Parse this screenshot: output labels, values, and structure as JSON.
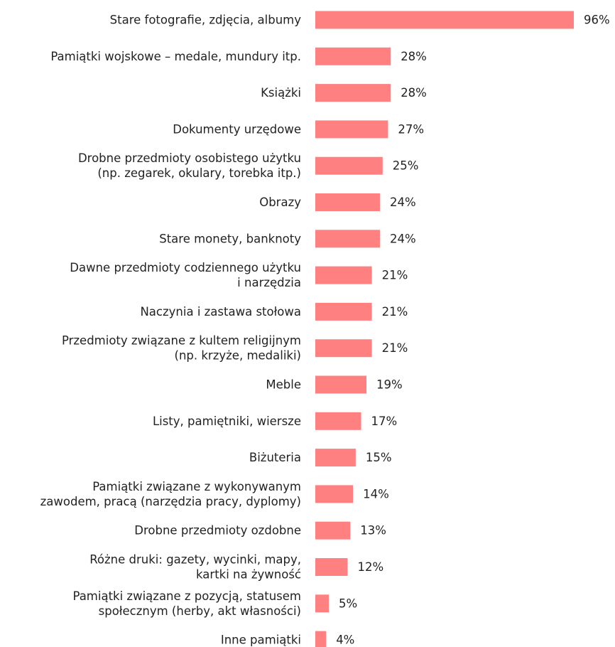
{
  "chart_data": {
    "type": "bar",
    "orientation": "horizontal",
    "title": "",
    "xlabel": "",
    "ylabel": "",
    "xlim": [
      0,
      100
    ],
    "grid": false,
    "legend": "none",
    "bar_color": "#ff8080",
    "value_suffix": "%",
    "categories": [
      [
        "Stare fotografie, zdjęcia, albumy"
      ],
      [
        "Pamiątki wojskowe – medale, mundury itp."
      ],
      [
        "Książki"
      ],
      [
        "Dokumenty urzędowe"
      ],
      [
        "Drobne przedmioty osobistego użytku",
        "(np. zegarek, okulary, torebka itp.)"
      ],
      [
        "Obrazy"
      ],
      [
        "Stare monety, banknoty"
      ],
      [
        "Dawne przedmioty codziennego użytku",
        "i narzędzia"
      ],
      [
        "Naczynia i zastawa stołowa"
      ],
      [
        "Przedmioty związane z kultem religijnym",
        "(np. krzyże, medaliki)"
      ],
      [
        "Meble"
      ],
      [
        "Listy, pamiętniki, wiersze"
      ],
      [
        "Biżuteria"
      ],
      [
        "Pamiątki związane z wykonywanym",
        "zawodem, pracą (narzędzia pracy, dyplomy)"
      ],
      [
        "Drobne przedmioty ozdobne"
      ],
      [
        "Różne druki: gazety, wycinki, mapy,",
        "kartki na żywność"
      ],
      [
        "Pamiątki związane z pozycją, statusem",
        "społecznym (herby, akt własności)"
      ],
      [
        "Inne pamiątki"
      ]
    ],
    "values": [
      96,
      28,
      28,
      27,
      25,
      24,
      24,
      21,
      21,
      21,
      19,
      17,
      15,
      14,
      13,
      12,
      5,
      4
    ]
  }
}
